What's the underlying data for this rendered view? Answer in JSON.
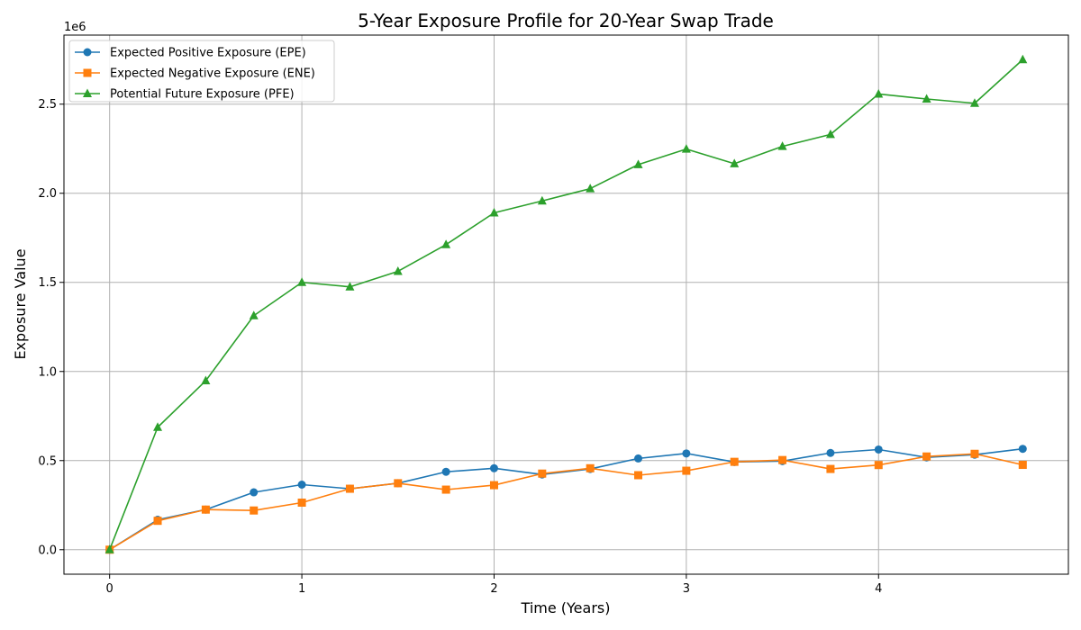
{
  "chart_data": {
    "type": "line",
    "title": "5-Year Exposure Profile for 20-Year Swap Trade",
    "xlabel": "Time (Years)",
    "ylabel": "Exposure Value",
    "y_scale_label": "1e6",
    "xlim": [
      -0.2375,
      4.9875
    ],
    "ylim": [
      -137500,
      2887500
    ],
    "x_ticks": [
      0,
      1,
      2,
      3,
      4
    ],
    "x_tick_labels": [
      "0",
      "1",
      "2",
      "3",
      "4"
    ],
    "y_ticks": [
      0,
      500000,
      1000000,
      1500000,
      2000000,
      2500000
    ],
    "y_tick_labels": [
      "0.0",
      "0.5",
      "1.0",
      "1.5",
      "2.0",
      "2.5"
    ],
    "grid": true,
    "legend_position": "top-left",
    "x": [
      0,
      0.25,
      0.5,
      0.75,
      1.0,
      1.25,
      1.5,
      1.75,
      2.0,
      2.25,
      2.5,
      2.75,
      3.0,
      3.25,
      3.5,
      3.75,
      4.0,
      4.25,
      4.5,
      4.75
    ],
    "series": [
      {
        "name": "Expected Positive Exposure (EPE)",
        "color": "#1f77b4",
        "marker": "circle",
        "values": [
          0,
          168000,
          225000,
          322000,
          365000,
          342000,
          373000,
          437000,
          457000,
          422000,
          453000,
          512000,
          540000,
          492000,
          497000,
          543000,
          562000,
          518000,
          533000,
          566000
        ]
      },
      {
        "name": "Expected Negative Exposure (ENE)",
        "color": "#ff7f0e",
        "marker": "square",
        "values": [
          0,
          162000,
          225000,
          220000,
          264000,
          342000,
          373000,
          337000,
          362000,
          427000,
          457000,
          418000,
          443000,
          493000,
          503000,
          453000,
          475000,
          523000,
          538000,
          476000
        ]
      },
      {
        "name": "Potential Future Exposure (PFE)",
        "color": "#2ca02c",
        "marker": "triangle",
        "values": [
          0,
          687000,
          948000,
          1313000,
          1500000,
          1475000,
          1562000,
          1712000,
          1890000,
          1957000,
          2026000,
          2161000,
          2248000,
          2166000,
          2263000,
          2330000,
          2557000,
          2529000,
          2505000,
          2750000
        ]
      }
    ]
  }
}
